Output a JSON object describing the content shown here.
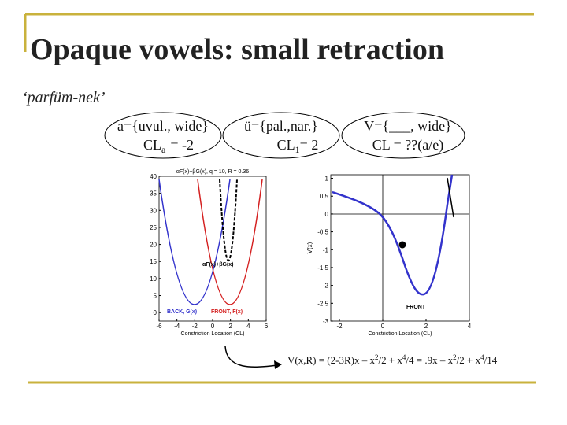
{
  "title": "Opaque vowels: small retraction",
  "subtitle": "‘parfüm-nek’",
  "ellipses": [
    {
      "text": "a={uvul., wide}",
      "cl": "CL",
      "sub": "a",
      "value": "= -2"
    },
    {
      "text": "ü={pal.,nar.}",
      "cl": "CL",
      "sub": "1",
      "value": "= 2"
    },
    {
      "text": "V={___, wide}",
      "cl": "CL = ??(a/e)"
    }
  ],
  "left_plot": {
    "title": "αF(x)+βG(x), q = 10, R = 0.36",
    "xlabel": "Constriction Location (CL)",
    "xlim": [
      -6,
      6
    ],
    "ylim": [
      -2.5,
      40
    ],
    "xticks": [
      -6,
      -4,
      -2,
      0,
      2,
      4,
      6
    ],
    "yticks": [
      0,
      5,
      10,
      15,
      20,
      25,
      30,
      35,
      40
    ],
    "annotations": [
      "αF(x)+βG(x)",
      "BACK, G(x)",
      "FRONT, F(x)"
    ]
  },
  "right_plot": {
    "xlabel": "Constriction Location (CL)",
    "ylabel": "V(x)",
    "xlim": [
      -2.4,
      4
    ],
    "ylim": [
      -3,
      1.1
    ],
    "xticks": [
      -2,
      0,
      2,
      4
    ],
    "yticks": [
      1,
      0.5,
      0,
      -0.5,
      -1,
      -1.5,
      -2,
      -2.5,
      -3
    ],
    "annotations": [
      "FRONT"
    ]
  },
  "formula": [
    "V(x,R) = (2-3R)x – x",
    "2",
    "/2 + x",
    "4",
    "/4 = .9x – x",
    "2",
    "/2 + x",
    "4",
    "/14"
  ]
}
